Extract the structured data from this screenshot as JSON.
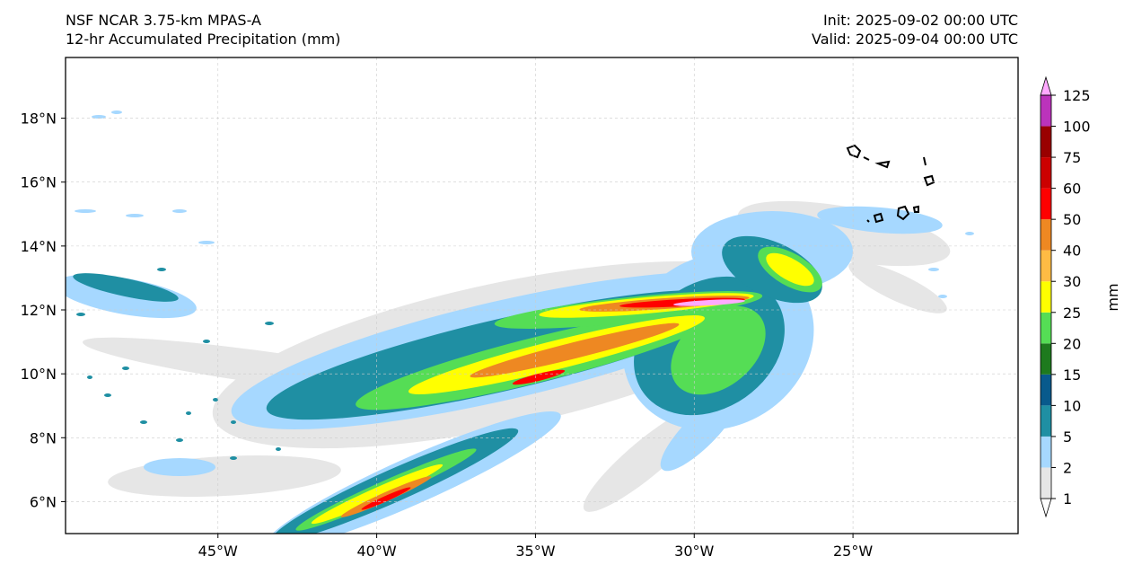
{
  "header": {
    "model": "NSF NCAR 3.75-km MPAS-A",
    "field": "12-hr Accumulated Precipitation (mm)",
    "init": "Init: 2025-09-02 00:00 UTC",
    "valid": "Valid: 2025-09-04 00:00 UTC"
  },
  "map": {
    "lon_range": [
      -49.8,
      -19.8
    ],
    "lat_range": [
      5.0,
      19.9
    ],
    "lon_ticks": [
      {
        "value": -45,
        "label": "45°W"
      },
      {
        "value": -40,
        "label": "40°W"
      },
      {
        "value": -35,
        "label": "35°W"
      },
      {
        "value": -30,
        "label": "30°W"
      },
      {
        "value": -25,
        "label": "25°W"
      }
    ],
    "lat_ticks": [
      {
        "value": 6,
        "label": "6°N"
      },
      {
        "value": 8,
        "label": "8°N"
      },
      {
        "value": 10,
        "label": "10°N"
      },
      {
        "value": 12,
        "label": "12°N"
      },
      {
        "value": 14,
        "label": "14°N"
      },
      {
        "value": 16,
        "label": "16°N"
      },
      {
        "value": 18,
        "label": "18°N"
      }
    ],
    "features": [
      "Cabo Verde islands",
      "precipitation band along ITCZ",
      "tropical disturbance near 28°W 13°N"
    ]
  },
  "colorbar": {
    "label": "mm",
    "levels": [
      "1",
      "2",
      "5",
      "10",
      "15",
      "20",
      "25",
      "30",
      "40",
      "50",
      "60",
      "75",
      "100",
      "125"
    ],
    "colors": [
      "#e6e6e6",
      "#a6d8ff",
      "#1f8fa3",
      "#085a8c",
      "#1e7a1e",
      "#55dd55",
      "#ffff00",
      "#ffbb44",
      "#ee8822",
      "#ff0000",
      "#cc0000",
      "#990000",
      "#bb33bb",
      "#ffaaff"
    ]
  }
}
